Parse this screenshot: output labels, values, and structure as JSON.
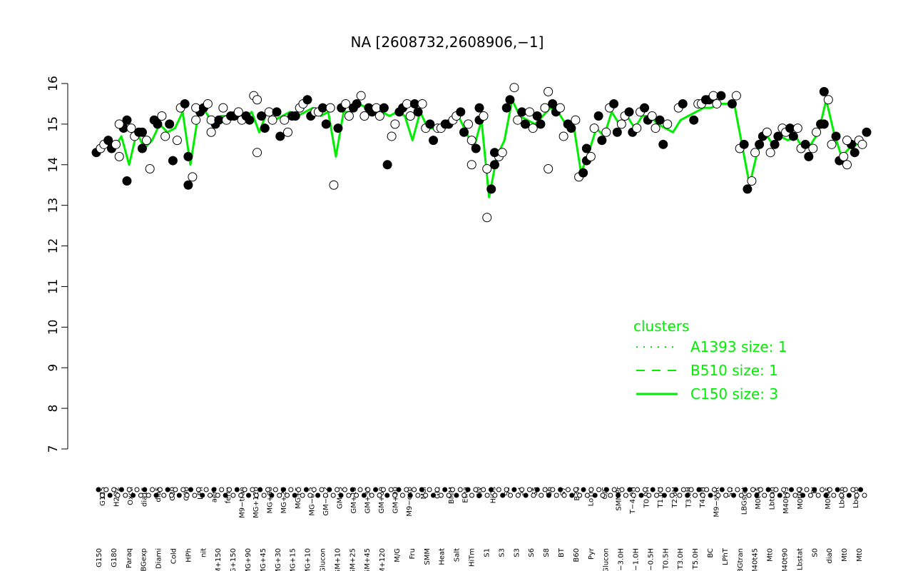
{
  "chart_data": {
    "type": "line",
    "title": "NA [2608732,2608906,−1]",
    "xlabel": "",
    "ylabel": "",
    "ylim": [
      7,
      16
    ],
    "yticks": [
      7,
      8,
      9,
      10,
      11,
      12,
      13,
      14,
      15,
      16
    ],
    "grid": false,
    "categories": [
      "G150",
      "G135",
      "G180",
      "H2O2",
      "Paraq",
      "Oxctl",
      "LBGexp",
      "dia15",
      "Diami",
      "dia5",
      "C30",
      "C90",
      "Cold",
      "LPh",
      "HPh",
      "aero",
      "nit",
      "ferm",
      "GM+150",
      "M9−tran",
      "MG+150",
      "MG+120",
      "MG+90",
      "MG+60",
      "MG+45",
      "MG+30",
      "MG+25",
      "MG+15",
      "MG+10",
      "MG+5",
      "MG−0.2",
      "Glucon",
      "GM−0.2",
      "GM+5",
      "GM+10",
      "GM+15",
      "GM+25",
      "GM+30",
      "GM+45",
      "GM+60",
      "GM+90",
      "GM+120",
      "M9−exp",
      "M/G",
      "Mal",
      "Fru",
      "Glu",
      "SMM",
      "BMM",
      "Heat",
      "Salt",
      "Etha",
      "Gly",
      "HiTm",
      "HiOs",
      "S1",
      "S2",
      "S3",
      "S4",
      "S5",
      "S6",
      "S7",
      "S8",
      "BT",
      "B36",
      "B60",
      "LoTm",
      "Pyr",
      "G/S",
      "Glucon2",
      "SMMPr",
      "T−4.0H",
      "T−3.0H",
      "T−2.0H",
      "T−1.0H",
      "T−0.5H",
      "T0.0H",
      "T0.5H",
      "T1.0H",
      "T2.0H",
      "T3.0H",
      "T4.0H",
      "T5.0H",
      "M9−stat",
      "BC",
      "Sw",
      "LPhT",
      "LBGstat",
      "LBGtran",
      "M0t45",
      "M40t45",
      "Lbtran",
      "Mt0",
      "M40t90",
      "M0t90",
      "Lbstat",
      "BI",
      "S0",
      "dia0",
      "Mt0b",
      "Lbexp"
    ],
    "visible_tick_labels_top": [
      "G135",
      "H2O2",
      "Oxctl",
      "dia15",
      "dia5",
      "C30",
      "C90",
      "LPh",
      "aero",
      "ferm",
      "M9−tran",
      "MG+120",
      "MG+60",
      "MG+25",
      "MG+5",
      "MG−0.2",
      "GM−0.2",
      "GM+5",
      "GM+15",
      "GM+30",
      "GM+60",
      "GM+90",
      "M9−exp",
      "Mal",
      "Glu",
      "BMM",
      "Etha",
      "Gly",
      "HiOs",
      "S2",
      "S4",
      "S5",
      "S6",
      "S7",
      "B36",
      "LoTm",
      "G/S",
      "SMMPr",
      "T−4.0H",
      "T0.0H",
      "T1.0H",
      "T2.0H",
      "T3.0H",
      "T4.0H",
      "M9−stat",
      "Sw",
      "LBGstat",
      "M0t45",
      "Lbtran",
      "M40t45",
      "M0t90",
      "BI",
      "M0t45",
      "Lbexp",
      "Lbexp"
    ],
    "visible_tick_labels_bottom": [
      "G150",
      "G180",
      "Paraq",
      "LBGexp",
      "Diami",
      "Cold",
      "HPh",
      "nit",
      "GM+150",
      "MG+150",
      "MG+90",
      "MG+45",
      "MG+30",
      "MG+15",
      "MG+10",
      "Glucon",
      "GM+10",
      "GM+25",
      "GM+45",
      "GM+120",
      "M/G",
      "Fru",
      "SMM",
      "Heat",
      "Salt",
      "HiTm",
      "S1",
      "S3",
      "S3",
      "S6",
      "S8",
      "BT",
      "B60",
      "Pyr",
      "Glucon",
      "T−3.0H",
      "T−1.0H",
      "T−0.5H",
      "T0.5H",
      "T3.0H",
      "T5.0H",
      "BC",
      "LPhT",
      "LBGtran",
      "M40t45",
      "Mt0",
      "M40t90",
      "Lbstat",
      "S0",
      "dia0",
      "Mt0",
      "Mt0"
    ],
    "series": [
      {
        "name": "C150 size: 3",
        "style": "solid",
        "color": "#00ee00",
        "values": [
          14.3,
          14.5,
          14.4,
          14.7,
          14.0,
          14.8,
          14.4,
          14.6,
          15.0,
          14.8,
          14.9,
          15.3,
          14.0,
          15.2,
          15.3,
          15.0,
          15.2,
          15.2,
          15.2,
          15.1,
          15.3,
          14.8,
          15.3,
          15.1,
          15.2,
          15.3,
          15.2,
          15.3,
          15.4,
          15.2,
          15.3,
          14.2,
          15.3,
          15.3,
          15.5,
          15.4,
          15.3,
          15.3,
          15.2,
          15.3,
          15.2,
          14.6,
          15.3,
          14.9,
          14.9,
          14.9,
          15.0,
          15.2,
          14.8,
          14.4,
          15.1,
          13.2,
          14.2,
          14.6,
          15.6,
          15.2,
          15.1,
          15.0,
          15.2,
          15.4,
          15.3,
          15.0,
          15.0,
          13.8,
          14.3,
          14.9,
          14.7,
          15.3,
          15.0,
          15.2,
          14.9,
          15.2,
          15.2,
          15.0,
          14.9,
          14.8,
          15.1,
          15.2,
          15.3,
          15.4,
          15.4,
          15.5,
          15.5,
          15.5,
          14.5,
          13.5,
          14.3,
          14.8,
          14.5,
          14.7,
          14.6,
          14.7,
          14.4,
          14.5,
          14.8,
          15.6,
          14.8,
          14.2,
          14.4,
          14.5,
          14.6
        ]
      }
    ],
    "points": [
      {
        "cat": "G150",
        "vals": [
          14.3,
          14.4
        ]
      },
      {
        "cat": "G135",
        "vals": [
          14.5,
          14.6
        ]
      },
      {
        "cat": "G180",
        "vals": [
          14.4,
          14.5
        ]
      },
      {
        "cat": "H2O2",
        "vals": [
          14.2,
          14.9,
          15.0
        ]
      },
      {
        "cat": "Paraq",
        "vals": [
          13.6,
          14.9,
          15.1
        ]
      },
      {
        "cat": "Oxctl",
        "vals": [
          14.7,
          14.8
        ]
      },
      {
        "cat": "LBGexp",
        "vals": [
          14.4,
          14.6,
          14.8
        ]
      },
      {
        "cat": "dia15",
        "vals": [
          13.9,
          15.1
        ]
      },
      {
        "cat": "Diami",
        "vals": [
          15.0,
          15.2
        ]
      },
      {
        "cat": "dia5",
        "vals": [
          14.7,
          15.0
        ]
      },
      {
        "cat": "C30",
        "vals": [
          14.1,
          14.6
        ]
      },
      {
        "cat": "C90",
        "vals": [
          15.4,
          15.5
        ]
      },
      {
        "cat": "Cold",
        "vals": [
          13.5,
          13.7,
          14.2
        ]
      },
      {
        "cat": "LPh",
        "vals": [
          15.1,
          15.3,
          15.4
        ]
      },
      {
        "cat": "HPh",
        "vals": [
          15.4,
          15.5
        ]
      },
      {
        "cat": "aero",
        "vals": [
          14.8,
          15.0,
          15.1
        ]
      },
      {
        "cat": "nit",
        "vals": [
          15.1,
          15.4
        ]
      },
      {
        "cat": "ferm",
        "vals": [
          15.1,
          15.2
        ]
      },
      {
        "cat": "GM+150",
        "vals": [
          15.2,
          15.3
        ]
      },
      {
        "cat": "M9−tran",
        "vals": [
          15.1,
          15.2
        ]
      },
      {
        "cat": "MG+150",
        "vals": [
          15.1,
          15.7
        ]
      },
      {
        "cat": "MG+120",
        "vals": [
          14.3,
          15.2,
          15.6
        ]
      },
      {
        "cat": "MG+90",
        "vals": [
          14.9,
          15.3
        ]
      },
      {
        "cat": "MG+60",
        "vals": [
          15.1,
          15.3
        ]
      },
      {
        "cat": "MG+45",
        "vals": [
          14.7,
          15.1
        ]
      },
      {
        "cat": "MG+30",
        "vals": [
          14.8,
          15.2
        ]
      },
      {
        "cat": "MG+25",
        "vals": [
          15.2,
          15.4
        ]
      },
      {
        "cat": "MG+15",
        "vals": [
          15.5,
          15.6
        ]
      },
      {
        "cat": "MG+10",
        "vals": [
          15.2,
          15.3
        ]
      },
      {
        "cat": "MG+5",
        "vals": [
          15.3,
          15.4
        ]
      },
      {
        "cat": "MG−0.2",
        "vals": [
          15.0,
          15.4
        ]
      },
      {
        "cat": "Glucon",
        "vals": [
          13.5,
          14.9
        ]
      },
      {
        "cat": "GM−0.2",
        "vals": [
          15.4,
          15.5
        ]
      },
      {
        "cat": "GM+5",
        "vals": [
          15.2,
          15.4
        ]
      },
      {
        "cat": "GM+10",
        "vals": [
          15.5,
          15.7
        ]
      },
      {
        "cat": "GM+15",
        "vals": [
          15.2,
          15.4
        ]
      },
      {
        "cat": "GM+25",
        "vals": [
          15.3,
          15.4
        ]
      },
      {
        "cat": "GM+30",
        "vals": [
          15.2,
          15.4
        ]
      },
      {
        "cat": "GM+45",
        "vals": [
          14.0,
          14.7
        ]
      },
      {
        "cat": "GM+60",
        "vals": [
          15.0,
          15.3
        ]
      },
      {
        "cat": "GM+90",
        "vals": [
          15.4,
          15.5
        ]
      },
      {
        "cat": "GM+120",
        "vals": [
          15.2,
          15.5
        ]
      },
      {
        "cat": "M9−exp",
        "vals": [
          15.3,
          15.5
        ]
      },
      {
        "cat": "M/G",
        "vals": [
          14.9,
          15.0
        ]
      },
      {
        "cat": "Mal",
        "vals": [
          14.6,
          14.9
        ]
      },
      {
        "cat": "Fru",
        "vals": [
          14.9,
          15.0
        ]
      },
      {
        "cat": "Glu",
        "vals": [
          15.0,
          15.1
        ]
      },
      {
        "cat": "SMM",
        "vals": [
          15.2,
          15.3
        ]
      },
      {
        "cat": "BMM",
        "vals": [
          14.8,
          15.0
        ]
      },
      {
        "cat": "Heat",
        "vals": [
          14.0,
          14.4,
          14.6
        ]
      },
      {
        "cat": "Salt",
        "vals": [
          15.1,
          15.2,
          15.4
        ]
      },
      {
        "cat": "Etha",
        "vals": [
          12.7,
          13.4,
          13.9
        ]
      },
      {
        "cat": "Gly",
        "vals": [
          14.0,
          14.2,
          14.3
        ]
      },
      {
        "cat": "HiTm",
        "vals": [
          14.3,
          15.4
        ]
      },
      {
        "cat": "HiOs",
        "vals": [
          15.6,
          15.9
        ]
      },
      {
        "cat": "S1",
        "vals": [
          15.1,
          15.3
        ]
      },
      {
        "cat": "S2",
        "vals": [
          15.0,
          15.3
        ]
      },
      {
        "cat": "S3",
        "vals": [
          14.9,
          15.2
        ]
      },
      {
        "cat": "S4",
        "vals": [
          15.0,
          15.4
        ]
      },
      {
        "cat": "S5",
        "vals": [
          13.9,
          15.5,
          15.8
        ]
      },
      {
        "cat": "S6",
        "vals": [
          15.3,
          15.4
        ]
      },
      {
        "cat": "S7",
        "vals": [
          14.7,
          15.0
        ]
      },
      {
        "cat": "S8",
        "vals": [
          14.9,
          15.1
        ]
      },
      {
        "cat": "BT",
        "vals": [
          13.7,
          13.8
        ]
      },
      {
        "cat": "B36",
        "vals": [
          14.1,
          14.2,
          14.4
        ]
      },
      {
        "cat": "B60",
        "vals": [
          14.9,
          15.2
        ]
      },
      {
        "cat": "LoTm",
        "vals": [
          14.6,
          14.8
        ]
      },
      {
        "cat": "Pyr",
        "vals": [
          15.4,
          15.5
        ]
      },
      {
        "cat": "G/S",
        "vals": [
          14.8,
          15.0
        ]
      },
      {
        "cat": "Glucon2",
        "vals": [
          15.2,
          15.3
        ]
      },
      {
        "cat": "SMMPr",
        "vals": [
          14.8,
          14.9
        ]
      },
      {
        "cat": "T−4.0H",
        "vals": [
          15.3,
          15.4
        ]
      },
      {
        "cat": "T−3.0H",
        "vals": [
          15.1,
          15.2
        ]
      },
      {
        "cat": "T−2.0H",
        "vals": [
          14.9,
          15.1
        ]
      },
      {
        "cat": "T−1.0H",
        "vals": [
          14.5,
          15.0
        ]
      },
      {
        "cat": "T0.0H",
        "vals": [
          15.4,
          15.5
        ]
      },
      {
        "cat": "T1.0H",
        "vals": [
          15.1,
          15.5
        ]
      },
      {
        "cat": "T2.0H",
        "vals": [
          15.5,
          15.6
        ]
      },
      {
        "cat": "T3.0H",
        "vals": [
          15.6,
          15.7
        ]
      },
      {
        "cat": "T4.0H",
        "vals": [
          15.5,
          15.7
        ]
      },
      {
        "cat": "M9−stat",
        "vals": [
          15.5,
          15.7
        ]
      },
      {
        "cat": "BC",
        "vals": [
          14.4,
          14.5
        ]
      },
      {
        "cat": "Sw",
        "vals": [
          13.4,
          13.6
        ]
      },
      {
        "cat": "LPhT",
        "vals": [
          14.3,
          14.5
        ]
      },
      {
        "cat": "LBGstat",
        "vals": [
          14.7,
          14.8
        ]
      },
      {
        "cat": "LBGtran",
        "vals": [
          14.3,
          14.5
        ]
      },
      {
        "cat": "M0t45",
        "vals": [
          14.7,
          14.9
        ]
      },
      {
        "cat": "M40t45",
        "vals": [
          14.8,
          14.9
        ]
      },
      {
        "cat": "Lbtran",
        "vals": [
          14.7,
          14.9
        ]
      },
      {
        "cat": "Mt0",
        "vals": [
          14.4,
          14.5
        ]
      },
      {
        "cat": "M40t90",
        "vals": [
          14.2,
          14.4
        ]
      },
      {
        "cat": "M0t90",
        "vals": [
          14.8,
          15.0
        ]
      },
      {
        "cat": "Lbstat",
        "vals": [
          15.0,
          15.6,
          15.8
        ]
      },
      {
        "cat": "BI",
        "vals": [
          14.5,
          14.7
        ]
      },
      {
        "cat": "S0",
        "vals": [
          14.1,
          14.2
        ]
      },
      {
        "cat": "dia0",
        "vals": [
          14.0,
          14.5,
          14.6
        ]
      },
      {
        "cat": "Mt0b",
        "vals": [
          14.3,
          14.6
        ]
      },
      {
        "cat": "Lbexp",
        "vals": [
          14.5,
          14.8
        ]
      }
    ],
    "legend": {
      "title": "clusters",
      "placement": "bottom-right",
      "entries": [
        {
          "label": "A1393 size: 1",
          "style": "dotted"
        },
        {
          "label": "B510 size: 1",
          "style": "dashed"
        },
        {
          "label": "C150 size: 3",
          "style": "solid"
        }
      ],
      "color": "#00ee00"
    },
    "colors": {
      "line": "#00ee00",
      "axis": "#000000",
      "point_stroke": "#000000"
    }
  }
}
